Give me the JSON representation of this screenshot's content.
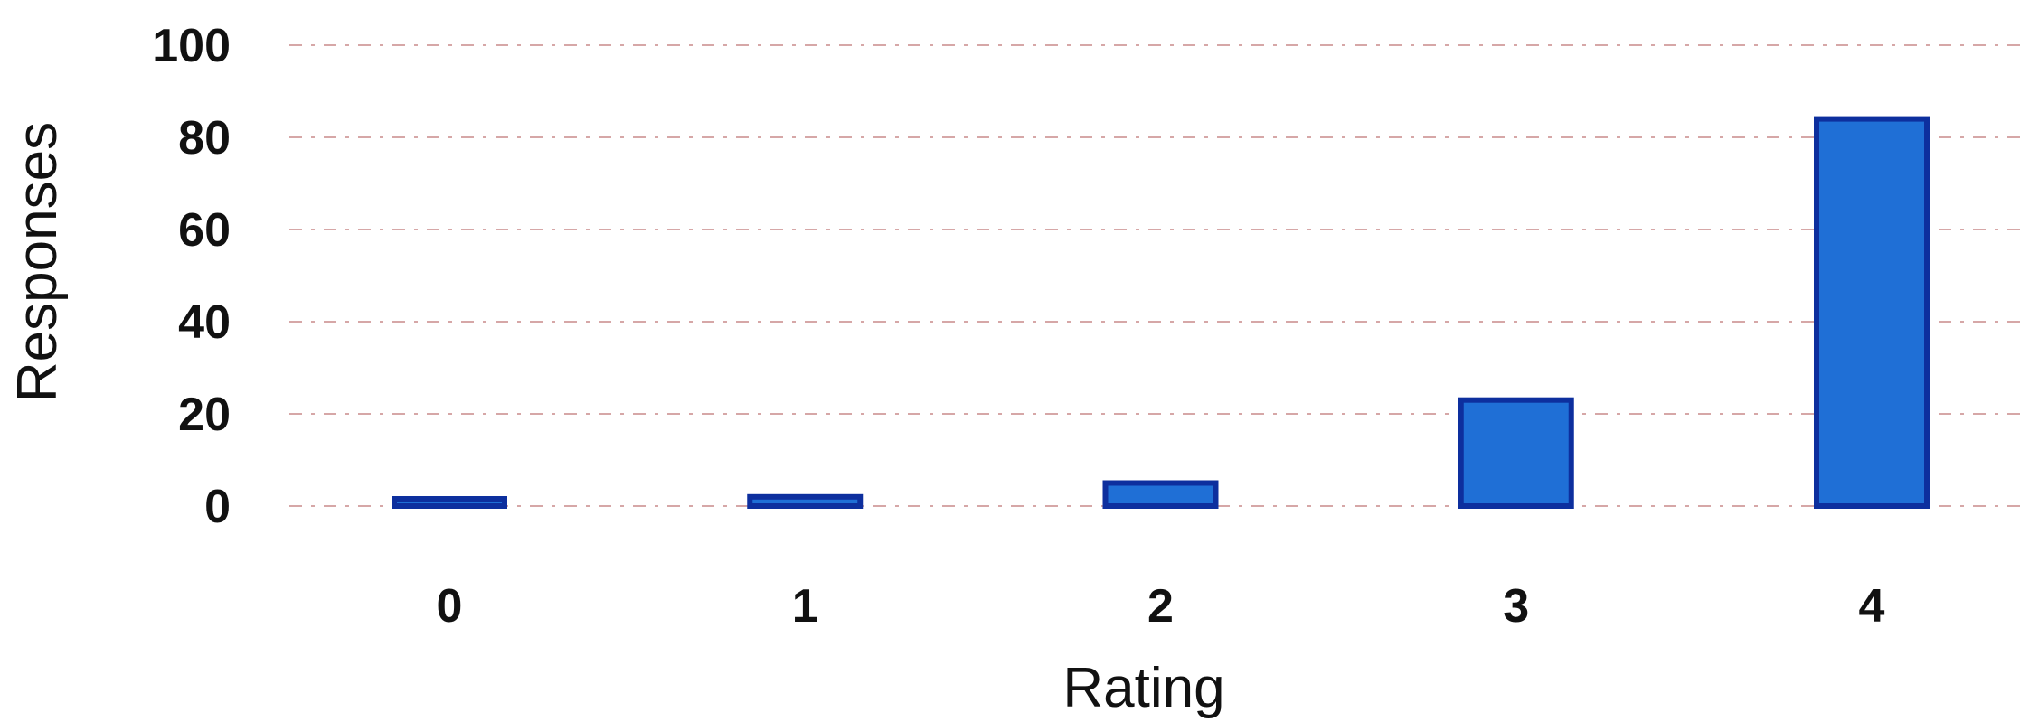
{
  "chart_data": {
    "type": "bar",
    "categories": [
      "0",
      "1",
      "2",
      "3",
      "4"
    ],
    "values": [
      1,
      2,
      5,
      23,
      84
    ],
    "xlabel": "Rating",
    "ylabel": "Responses",
    "ylim": [
      0,
      100
    ],
    "y_ticks": [
      "0",
      "20",
      "40",
      "60",
      "80",
      "100"
    ],
    "grid": true,
    "legend": "none",
    "colors": {
      "bar_fill": "#1f6fd6",
      "bar_edge": "#0d2f9e",
      "grid": "#c98a8a",
      "text": "#111111"
    }
  }
}
